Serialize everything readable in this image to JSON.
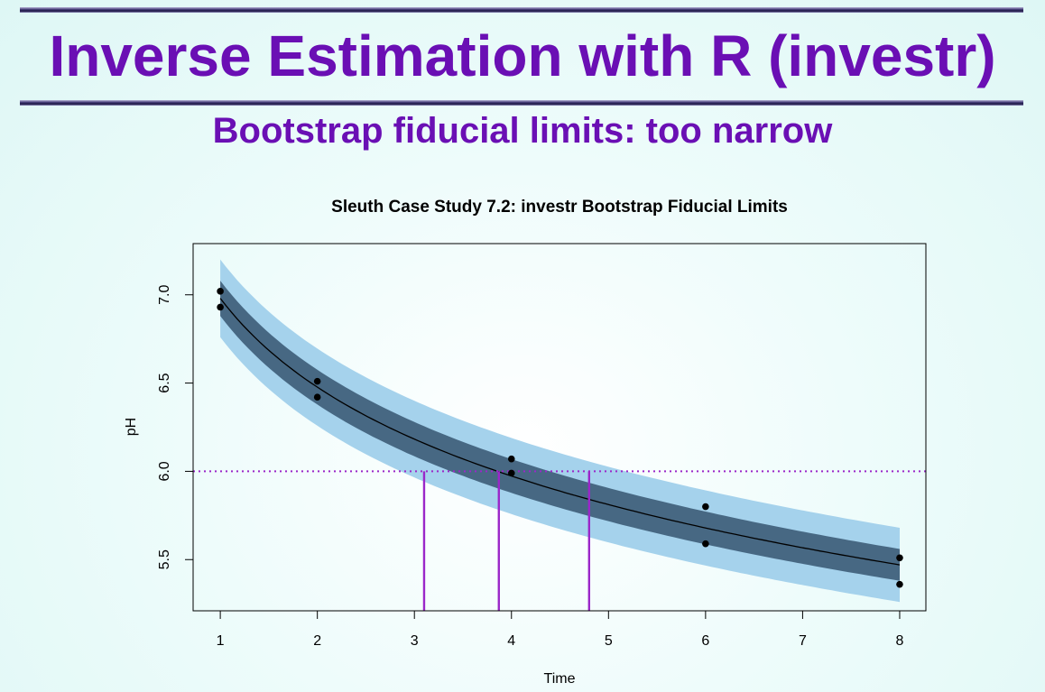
{
  "slide": {
    "title": "Inverse Estimation with R (investr)",
    "subtitle": "Bootstrap fiducial limits: too narrow"
  },
  "colors": {
    "title": "#6a0fb4",
    "outer_band": "#a5d2ec",
    "inner_band": "#476883",
    "fit_line": "#000000",
    "reference_line": "#9b27c9",
    "points": "#000000"
  },
  "chart_data": {
    "type": "scatter",
    "title": "Sleuth Case Study 7.2: investr Bootstrap Fiducial Limits",
    "xlabel": "Time",
    "ylabel": "pH",
    "xlim": [
      0.72,
      8.27
    ],
    "ylim": [
      5.21,
      7.29
    ],
    "x_ticks": [
      "1",
      "2",
      "3",
      "4",
      "5",
      "6",
      "7",
      "8"
    ],
    "y_ticks": [
      "5.5",
      "6.0",
      "6.5",
      "7.0"
    ],
    "grid": false,
    "points": [
      {
        "x": 1,
        "y": 7.02
      },
      {
        "x": 1,
        "y": 6.93
      },
      {
        "x": 2,
        "y": 6.51
      },
      {
        "x": 2,
        "y": 6.42
      },
      {
        "x": 4,
        "y": 6.07
      },
      {
        "x": 4,
        "y": 5.99
      },
      {
        "x": 6,
        "y": 5.8
      },
      {
        "x": 6,
        "y": 5.59
      },
      {
        "x": 8,
        "y": 5.51
      },
      {
        "x": 8,
        "y": 5.36
      }
    ],
    "fit": {
      "model": "pH = 6.98 - 0.726*ln(Time)",
      "intercept": 6.98,
      "slope_log_time": -0.726,
      "x_range": [
        1,
        8
      ]
    },
    "bands": {
      "outer_halfwidth": [
        0.22,
        0.21
      ],
      "inner_halfwidth": [
        0.1,
        0.09
      ]
    },
    "reference_line": {
      "y": 6.0
    },
    "fiducial_limits": {
      "lower": 3.1,
      "estimate": 3.87,
      "upper": 4.8
    }
  }
}
